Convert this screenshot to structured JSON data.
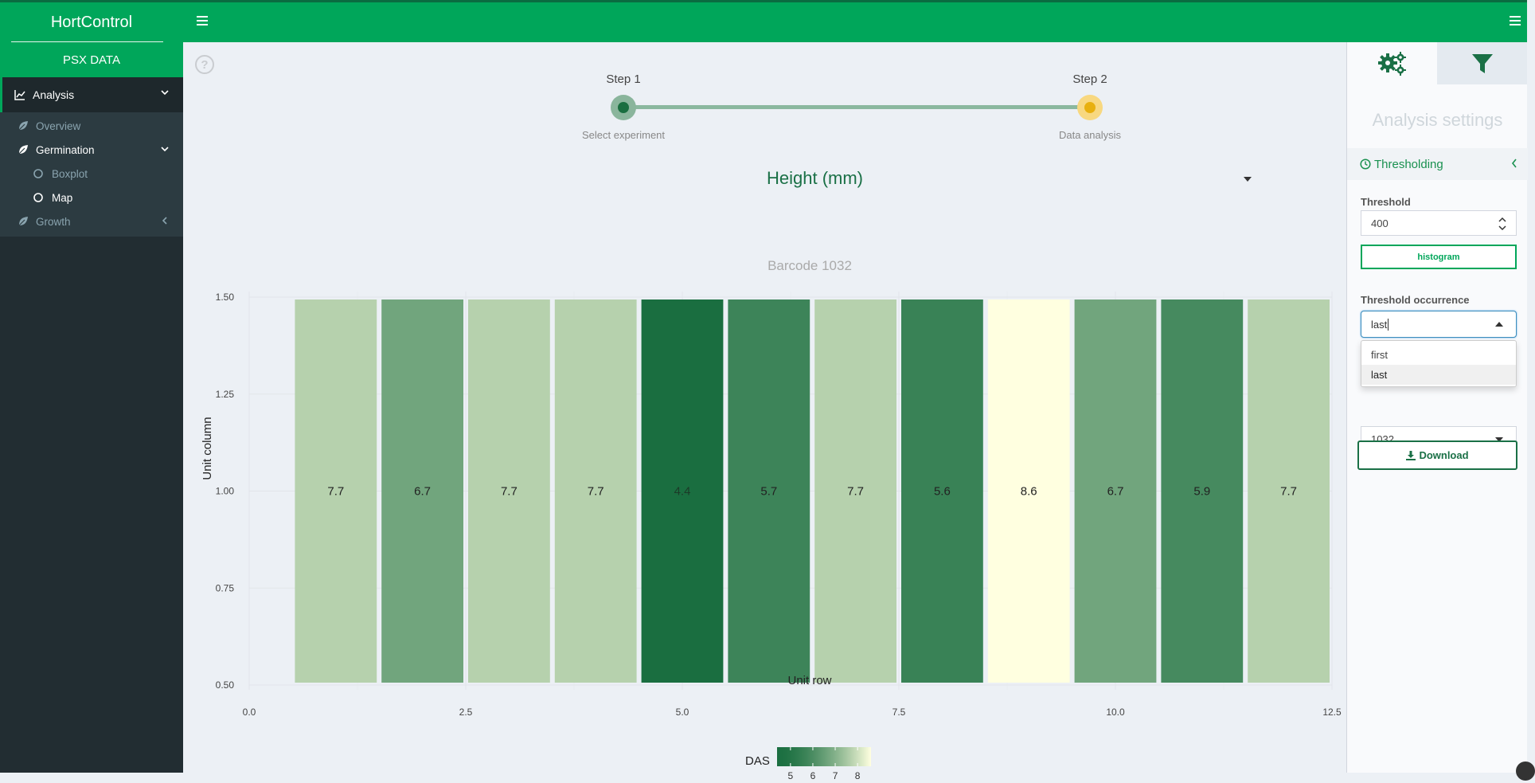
{
  "app": {
    "brand": "HortControl",
    "dataset": "PSX DATA"
  },
  "colors": {
    "brand": "#00a65a",
    "sidebar": "#222d32",
    "accent": "#1a7046"
  },
  "sidebar": {
    "analysis": {
      "label": "Analysis",
      "icon": "line-chart-icon"
    },
    "items": [
      {
        "label": "Overview",
        "icon": "leaf-icon"
      },
      {
        "label": "Germination",
        "icon": "leaf-icon"
      },
      {
        "label": "Boxplot",
        "icon": "circle-icon"
      },
      {
        "label": "Map",
        "icon": "circle-icon"
      },
      {
        "label": "Growth",
        "icon": "leaf-icon"
      }
    ]
  },
  "stepper": {
    "step1": {
      "label": "Step 1",
      "sub": "Select experiment"
    },
    "step2": {
      "label": "Step 2",
      "sub": "Data analysis"
    }
  },
  "variable": {
    "selected": "Height (mm)"
  },
  "chart_data": {
    "type": "heatmap",
    "title": "Barcode 1032",
    "xlabel": "Unit row",
    "ylabel": "Unit column",
    "x": [
      1,
      2,
      3,
      4,
      5,
      6,
      7,
      8,
      9,
      10,
      11,
      12
    ],
    "y": [
      1,
      1,
      1,
      1,
      1,
      1,
      1,
      1,
      1,
      1,
      1,
      1
    ],
    "values": [
      7.7,
      6.7,
      7.7,
      7.7,
      4.4,
      5.7,
      7.7,
      5.6,
      8.6,
      6.7,
      5.9,
      7.7
    ],
    "xlim": [
      0,
      12.5
    ],
    "ylim": [
      0.5,
      1.5
    ],
    "x_ticks": [
      "0.0",
      "2.5",
      "5.0",
      "7.5",
      "10.0",
      "12.5"
    ],
    "y_ticks": [
      "0.50",
      "0.75",
      "1.00",
      "1.25",
      "1.50"
    ],
    "legend": {
      "title": "DAS",
      "ticks": [
        "5",
        "6",
        "7",
        "8"
      ],
      "low_color": "#1a6e40",
      "high_color": "#ffffe0",
      "range": [
        4.4,
        8.6
      ]
    },
    "grid": true
  },
  "control": {
    "title": "Analysis settings",
    "section": "Thresholding",
    "threshold_label": "Threshold",
    "threshold_value": "400",
    "histogram_label": "histogram",
    "occurrence_label": "Threshold occurrence",
    "occurrence_value": "last",
    "occurrence_options": [
      "first",
      "last"
    ],
    "barcode_value": "1032",
    "download_label": "Download"
  }
}
